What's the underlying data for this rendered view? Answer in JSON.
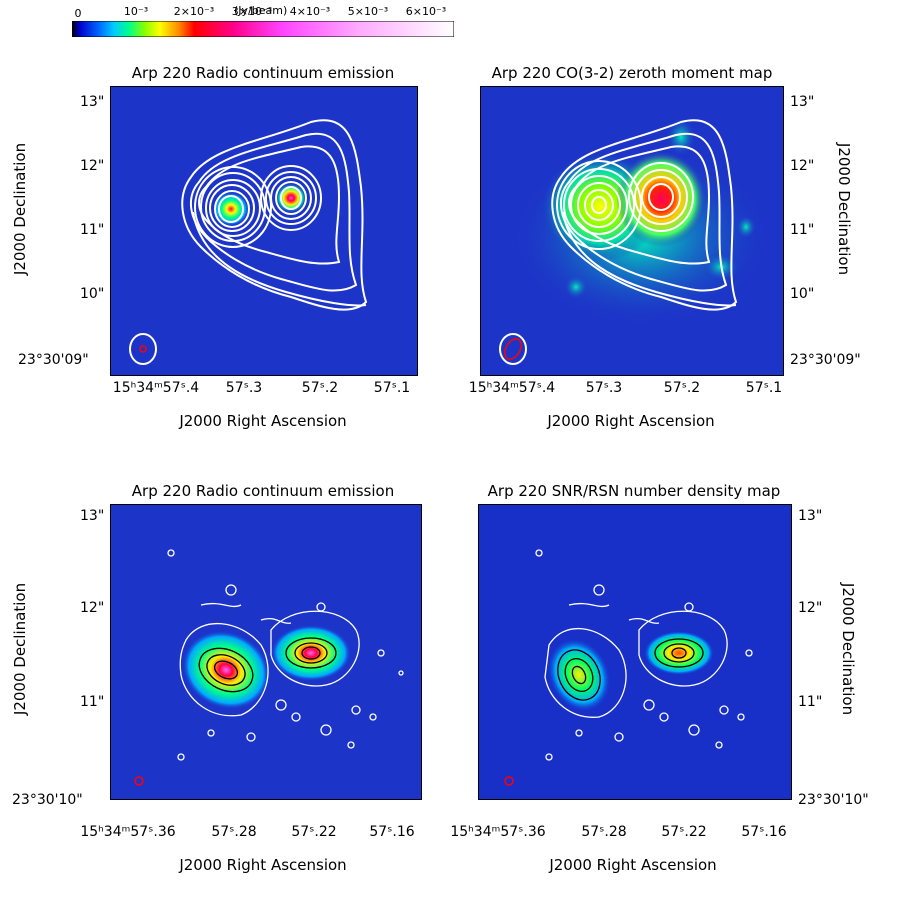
{
  "colorbar": {
    "unit": "(Jy/beam)",
    "ticks": [
      "0",
      "10⁻³",
      "2×10⁻³",
      "3×10⁻³",
      "4×10⁻³",
      "5×10⁻³",
      "6×10⁻³"
    ],
    "tick_values": [
      0,
      0.001,
      0.002,
      0.003,
      0.004,
      0.005,
      0.006
    ],
    "range": [
      0,
      0.0066
    ],
    "colormap": [
      "#000000",
      "#0000ff",
      "#00aaff",
      "#00ffaa",
      "#66ff00",
      "#ffff00",
      "#ff6600",
      "#ff0000",
      "#ff00aa",
      "#ff66ff",
      "#ffffff"
    ]
  },
  "panels": [
    {
      "title": "Arp 220 Radio continuum emission",
      "xlabel": "J2000 Right Ascension",
      "ylabel": "J2000 Declination",
      "xticks": [
        "15ʰ34ᵐ57ˢ.4",
        "57ˢ.3",
        "57ˢ.2",
        "57ˢ.1"
      ],
      "yticks": [
        "13\"",
        "12\"",
        "11\"",
        "10\"",
        "23°30'09\""
      ]
    },
    {
      "title": "Arp 220 CO(3-2) zeroth moment map",
      "xlabel": "J2000 Right Ascension",
      "ylabel": "J2000 Declination",
      "xticks": [
        "15ʰ34ᵐ57ˢ.4",
        "57ˢ.3",
        "57ˢ.2",
        "57ˢ.1"
      ],
      "yticks": [
        "13\"",
        "12\"",
        "11\"",
        "10\"",
        "23°30'09\""
      ]
    },
    {
      "title": "Arp 220 Radio continuum emission",
      "xlabel": "J2000 Right Ascension",
      "ylabel": "J2000 Declination",
      "xticks": [
        "15ʰ34ᵐ57ˢ.36",
        "57ˢ.28",
        "57ˢ.22",
        "57ˢ.16"
      ],
      "yticks": [
        "13\"",
        "12\"",
        "11\"",
        "23°30'10\""
      ]
    },
    {
      "title": "Arp 220 SNR/RSN number density map",
      "xlabel": "J2000 Right Ascension",
      "ylabel": "J2000 Declination",
      "xticks": [
        "15ʰ34ᵐ57ˢ.36",
        "57ˢ.28",
        "57ˢ.22",
        "57ˢ.16"
      ],
      "yticks": [
        "13\"",
        "12\"",
        "11\"",
        "23°30'10\""
      ]
    }
  ]
}
